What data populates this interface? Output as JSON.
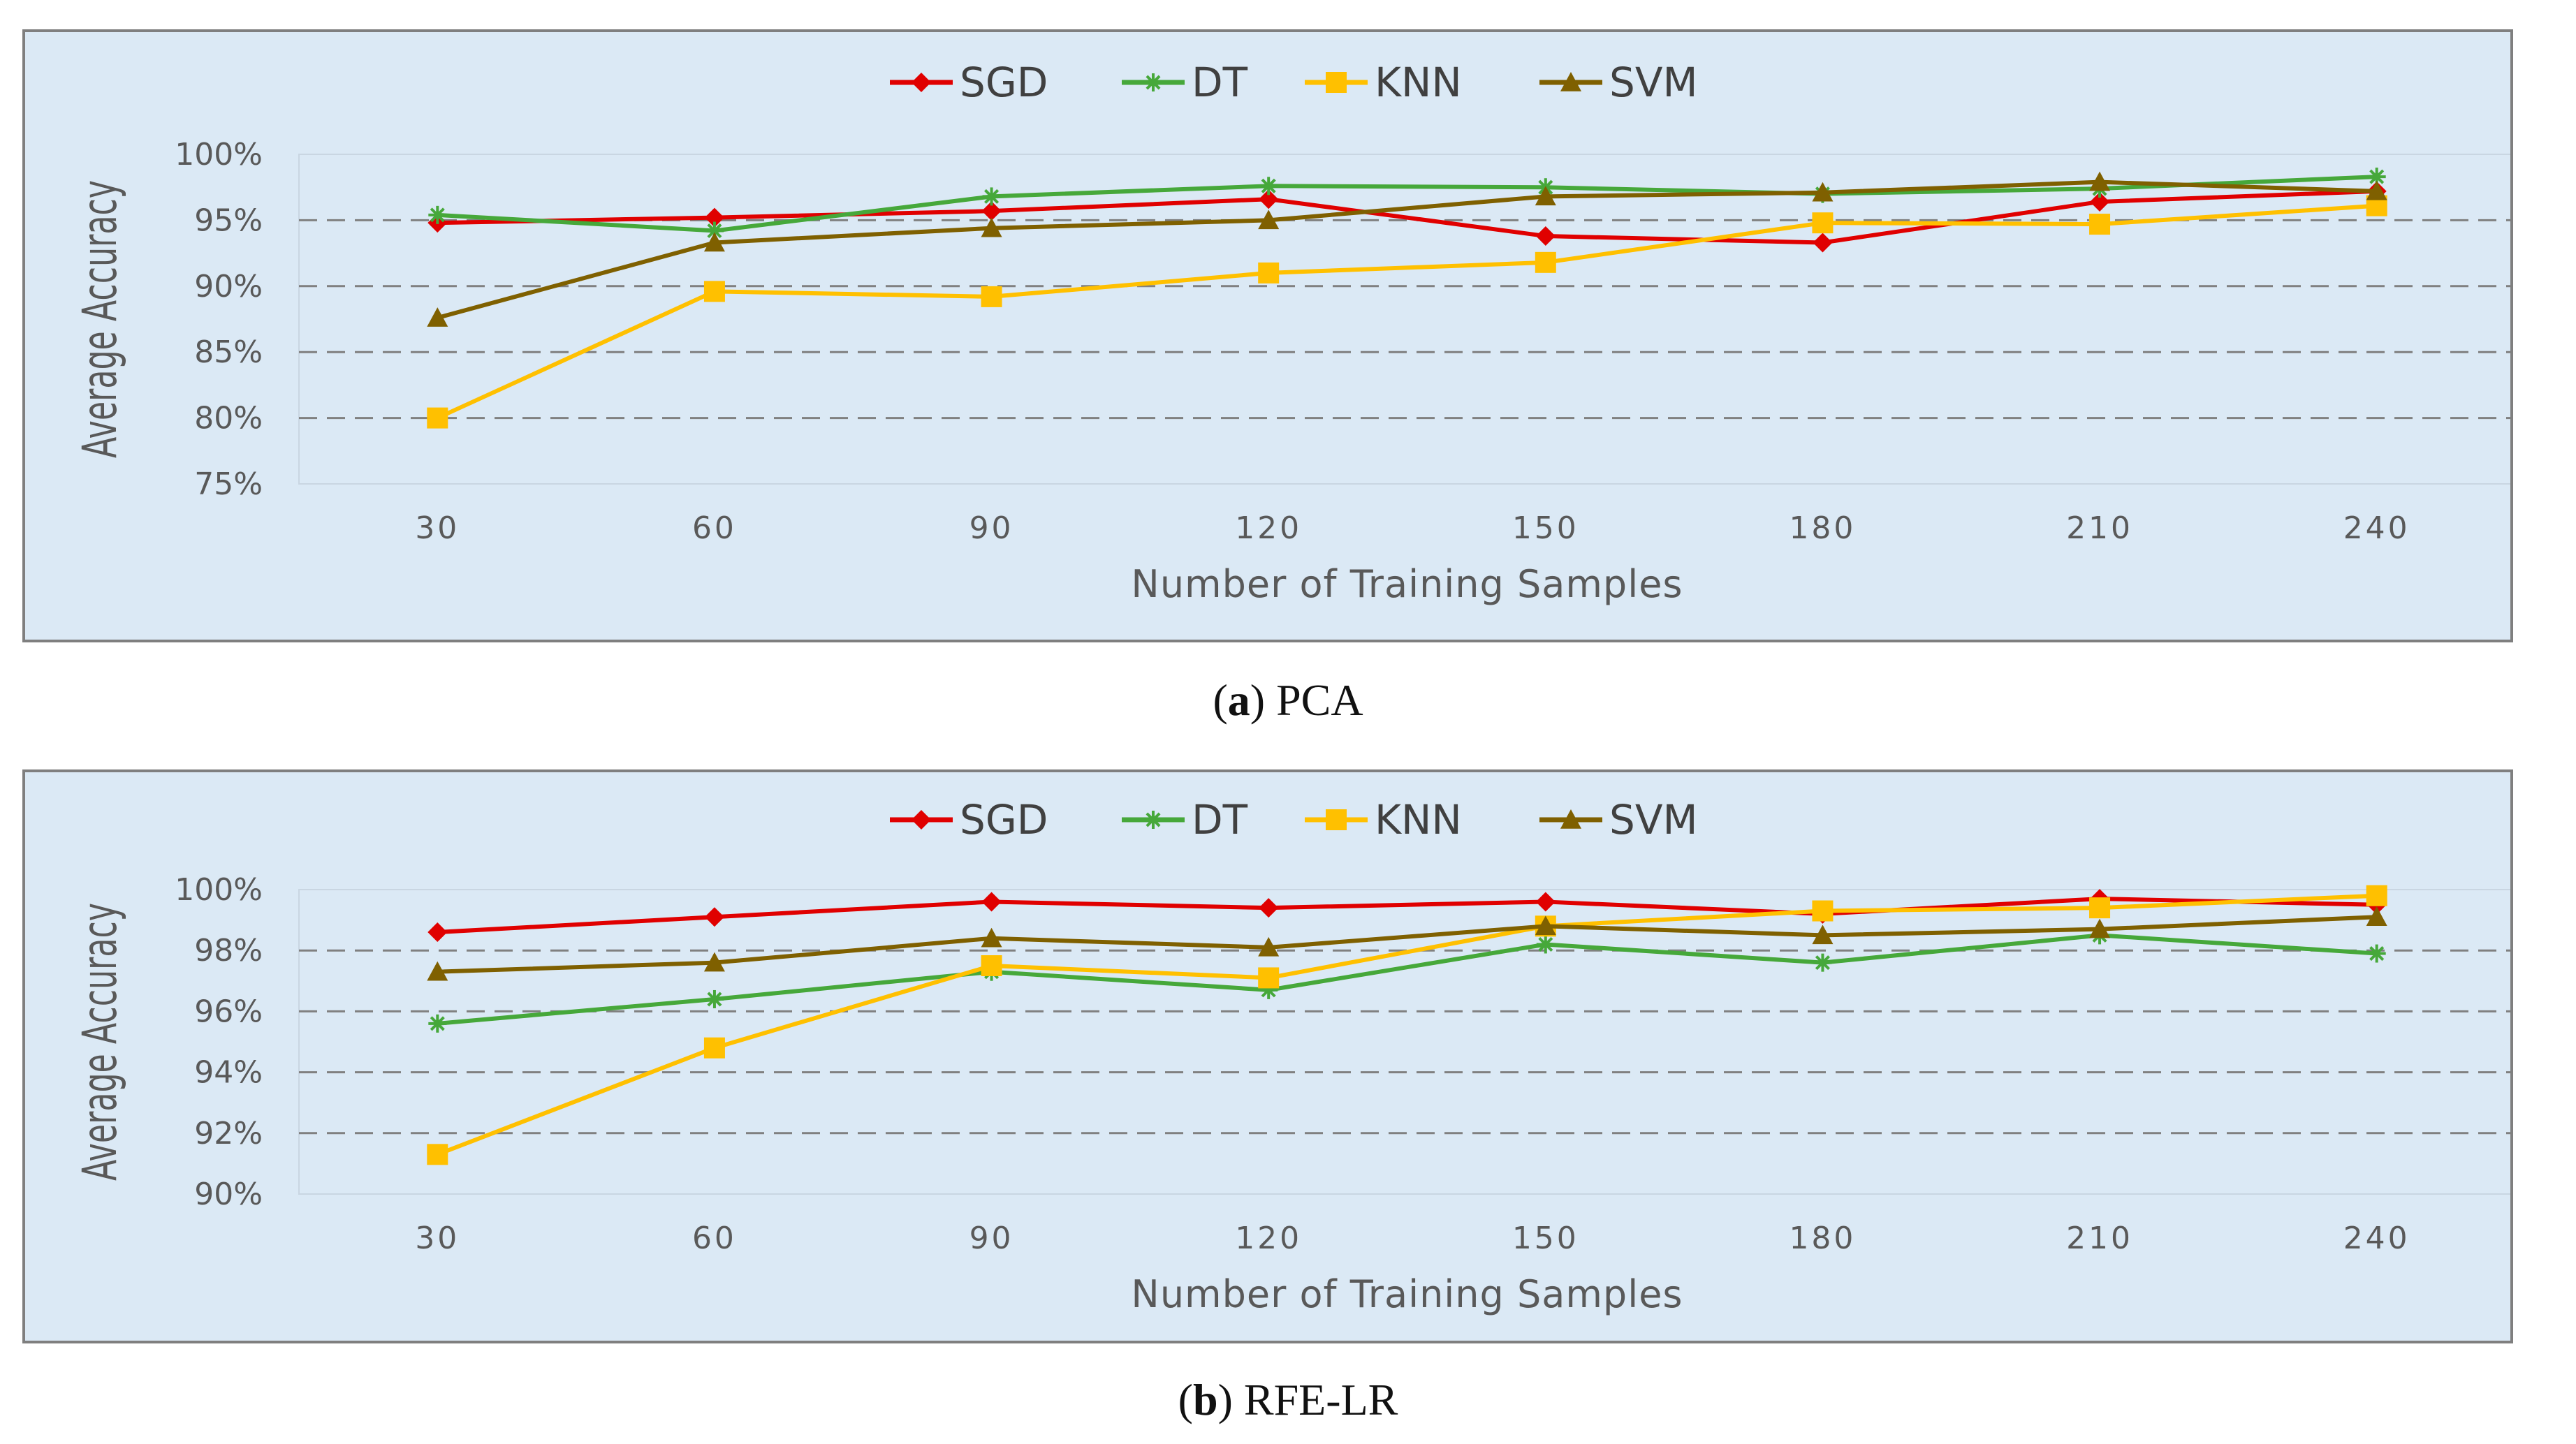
{
  "figure_captions": [
    {
      "label": "a",
      "text": "PCA"
    },
    {
      "label": "b",
      "text": "RFE-LR"
    }
  ],
  "colors": {
    "SGD": "#e00000",
    "DT": "#46a83a",
    "KNN": "#ffc000",
    "SVM": "#7f6000",
    "panel_background": "#dbe9f5",
    "gridline": "#808080"
  },
  "chart_data": [
    {
      "type": "line",
      "title": "",
      "xlabel": "Number of Training Samples",
      "ylabel": "Average Accuracy",
      "categories": [
        "30",
        "60",
        "90",
        "120",
        "150",
        "180",
        "210",
        "240"
      ],
      "ylim": [
        75,
        100
      ],
      "yticks": [
        75,
        80,
        85,
        90,
        95,
        100
      ],
      "ytick_labels": [
        "75%",
        "80%",
        "85%",
        "90%",
        "95%",
        "100%"
      ],
      "grid": "dashed horizontal",
      "legend_position": "top-center",
      "series": [
        {
          "name": "SGD",
          "marker": "diamond",
          "values": [
            94.8,
            95.2,
            95.7,
            96.6,
            93.8,
            93.3,
            96.4,
            97.2
          ]
        },
        {
          "name": "DT",
          "marker": "star",
          "values": [
            95.4,
            94.2,
            96.8,
            97.6,
            97.5,
            97.0,
            97.4,
            98.3
          ]
        },
        {
          "name": "KNN",
          "marker": "square",
          "values": [
            80.0,
            89.6,
            89.2,
            91.0,
            91.8,
            94.8,
            94.7,
            96.1
          ]
        },
        {
          "name": "SVM",
          "marker": "triangle",
          "values": [
            87.6,
            93.3,
            94.4,
            95.0,
            96.8,
            97.1,
            97.9,
            97.2
          ]
        }
      ]
    },
    {
      "type": "line",
      "title": "",
      "xlabel": "Number of Training Samples",
      "ylabel": "Average Accuracy",
      "categories": [
        "30",
        "60",
        "90",
        "120",
        "150",
        "180",
        "210",
        "240"
      ],
      "ylim": [
        90,
        100
      ],
      "yticks": [
        90,
        92,
        94,
        96,
        98,
        100
      ],
      "ytick_labels": [
        "90%",
        "92%",
        "94%",
        "96%",
        "98%",
        "100%"
      ],
      "grid": "dashed horizontal",
      "legend_position": "top-center",
      "series": [
        {
          "name": "SGD",
          "marker": "diamond",
          "values": [
            98.6,
            99.1,
            99.6,
            99.4,
            99.6,
            99.2,
            99.7,
            99.5
          ]
        },
        {
          "name": "DT",
          "marker": "star",
          "values": [
            95.6,
            96.4,
            97.3,
            96.7,
            98.2,
            97.6,
            98.5,
            97.9
          ]
        },
        {
          "name": "KNN",
          "marker": "square",
          "values": [
            91.3,
            94.8,
            97.5,
            97.1,
            98.8,
            99.3,
            99.4,
            99.8
          ]
        },
        {
          "name": "SVM",
          "marker": "triangle",
          "values": [
            97.3,
            97.6,
            98.4,
            98.1,
            98.8,
            98.5,
            98.7,
            99.1
          ]
        }
      ]
    }
  ]
}
